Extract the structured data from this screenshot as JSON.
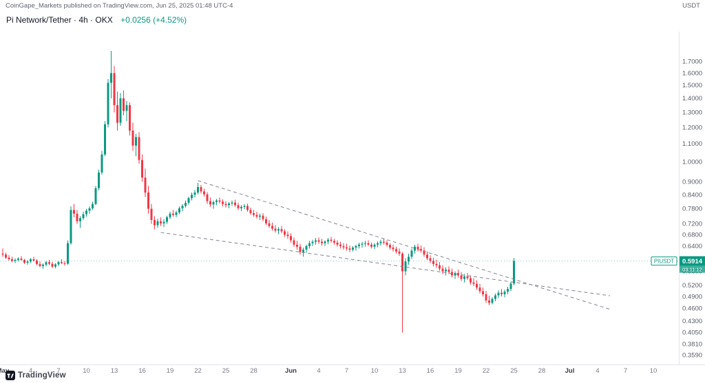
{
  "attribution": {
    "text": "CoinGape_Markets published on TradingView.com, Jun 25, 2025 01:48 UTC-4",
    "right_label": "USDT"
  },
  "header": {
    "symbol_title": "Pi Network/Tether · 4h · OKX",
    "change_text": "+0.0256 (+4.52%)"
  },
  "footer": {
    "logo_text": "TradingView"
  },
  "price_axis_label": {
    "symbol_tag": "PIUSDT",
    "last_price_label": "0.5914",
    "countdown": "03:11:12"
  },
  "colors": {
    "up": "#089981",
    "down": "#f23645",
    "trendline": "#80838e",
    "axis_border": "#e0e3eb",
    "text_primary": "#131722",
    "text_secondary": "#787b86"
  },
  "chart_data": {
    "type": "candlestick",
    "title": "Pi Network/Tether · 4h · OKX",
    "symbol": "PIUSDT",
    "exchange": "OKX",
    "interval": "4h",
    "scale": "log",
    "ylim": [
      0.342,
      1.95
    ],
    "last_price": 0.5914,
    "change_abs": 0.0256,
    "change_pct": 4.52,
    "y_ticks": [
      {
        "v": 1.7,
        "label": "1.7000"
      },
      {
        "v": 1.6,
        "label": "1.6000"
      },
      {
        "v": 1.5,
        "label": "1.5000"
      },
      {
        "v": 1.4,
        "label": "1.4000"
      },
      {
        "v": 1.3,
        "label": "1.3000"
      },
      {
        "v": 1.2,
        "label": "1.2000"
      },
      {
        "v": 1.1,
        "label": "1.1000"
      },
      {
        "v": 1.0,
        "label": "1.0000"
      },
      {
        "v": 0.9,
        "label": "0.9000"
      },
      {
        "v": 0.84,
        "label": "0.8400"
      },
      {
        "v": 0.78,
        "label": "0.7800"
      },
      {
        "v": 0.72,
        "label": "0.7200"
      },
      {
        "v": 0.68,
        "label": "0.6800"
      },
      {
        "v": 0.64,
        "label": "0.6400"
      },
      {
        "v": 0.56,
        "label": "0.5600"
      },
      {
        "v": 0.52,
        "label": "0.5200"
      },
      {
        "v": 0.49,
        "label": "0.4900"
      },
      {
        "v": 0.46,
        "label": "0.4600"
      },
      {
        "v": 0.43,
        "label": "0.4300"
      },
      {
        "v": 0.405,
        "label": "0.4050"
      },
      {
        "v": 0.381,
        "label": "0.3810"
      },
      {
        "v": 0.359,
        "label": "0.3590"
      }
    ],
    "x_ticks": [
      {
        "i": 0,
        "label": "May",
        "m": true
      },
      {
        "i": 9,
        "label": "4"
      },
      {
        "i": 18,
        "label": "7"
      },
      {
        "i": 27,
        "label": "10"
      },
      {
        "i": 36,
        "label": "13"
      },
      {
        "i": 45,
        "label": "16"
      },
      {
        "i": 54,
        "label": "19"
      },
      {
        "i": 63,
        "label": "22"
      },
      {
        "i": 72,
        "label": "25"
      },
      {
        "i": 81,
        "label": "28"
      },
      {
        "i": 93,
        "label": "Jun",
        "m": true
      },
      {
        "i": 102,
        "label": "4"
      },
      {
        "i": 111,
        "label": "7"
      },
      {
        "i": 120,
        "label": "10"
      },
      {
        "i": 129,
        "label": "13"
      },
      {
        "i": 138,
        "label": "16"
      },
      {
        "i": 147,
        "label": "19"
      },
      {
        "i": 156,
        "label": "22"
      },
      {
        "i": 165,
        "label": "25"
      },
      {
        "i": 174,
        "label": "28"
      },
      {
        "i": 183,
        "label": "Jul",
        "m": true
      },
      {
        "i": 192,
        "label": "4"
      },
      {
        "i": 201,
        "label": "7"
      },
      {
        "i": 210,
        "label": "10"
      }
    ],
    "trendlines": [
      {
        "name": "upper",
        "i1": 63,
        "p1": 0.905,
        "i2": 196,
        "p2": 0.458
      },
      {
        "name": "lower",
        "i1": 51,
        "p1": 0.688,
        "i2": 196,
        "p2": 0.492
      }
    ],
    "candles": [
      [
        0.615,
        0.632,
        0.605,
        0.612
      ],
      [
        0.612,
        0.618,
        0.598,
        0.602
      ],
      [
        0.602,
        0.61,
        0.593,
        0.597
      ],
      [
        0.597,
        0.605,
        0.588,
        0.592
      ],
      [
        0.592,
        0.6,
        0.585,
        0.595
      ],
      [
        0.595,
        0.603,
        0.59,
        0.599
      ],
      [
        0.599,
        0.607,
        0.592,
        0.595
      ],
      [
        0.595,
        0.598,
        0.582,
        0.586
      ],
      [
        0.586,
        0.594,
        0.58,
        0.59
      ],
      [
        0.59,
        0.601,
        0.585,
        0.597
      ],
      [
        0.597,
        0.605,
        0.59,
        0.593
      ],
      [
        0.593,
        0.597,
        0.578,
        0.582
      ],
      [
        0.582,
        0.59,
        0.572,
        0.576
      ],
      [
        0.576,
        0.584,
        0.568,
        0.58
      ],
      [
        0.58,
        0.592,
        0.575,
        0.588
      ],
      [
        0.588,
        0.595,
        0.578,
        0.583
      ],
      [
        0.583,
        0.589,
        0.57,
        0.574
      ],
      [
        0.574,
        0.585,
        0.569,
        0.581
      ],
      [
        0.581,
        0.592,
        0.576,
        0.588
      ],
      [
        0.588,
        0.597,
        0.582,
        0.585
      ],
      [
        0.585,
        0.591,
        0.577,
        0.583
      ],
      [
        0.583,
        0.66,
        0.58,
        0.65
      ],
      [
        0.65,
        0.79,
        0.645,
        0.775
      ],
      [
        0.775,
        0.8,
        0.745,
        0.76
      ],
      [
        0.76,
        0.775,
        0.72,
        0.73
      ],
      [
        0.73,
        0.75,
        0.705,
        0.742
      ],
      [
        0.742,
        0.768,
        0.735,
        0.758
      ],
      [
        0.758,
        0.78,
        0.748,
        0.772
      ],
      [
        0.772,
        0.79,
        0.76,
        0.782
      ],
      [
        0.782,
        0.81,
        0.775,
        0.8
      ],
      [
        0.8,
        0.88,
        0.795,
        0.87
      ],
      [
        0.87,
        0.96,
        0.86,
        0.945
      ],
      [
        0.945,
        1.06,
        0.935,
        1.04
      ],
      [
        1.04,
        1.24,
        1.03,
        1.22
      ],
      [
        1.22,
        1.55,
        1.2,
        1.52
      ],
      [
        1.52,
        1.8,
        1.4,
        1.6
      ],
      [
        1.6,
        1.66,
        1.3,
        1.35
      ],
      [
        1.35,
        1.45,
        1.18,
        1.23
      ],
      [
        1.23,
        1.44,
        1.21,
        1.4
      ],
      [
        1.4,
        1.46,
        1.28,
        1.31
      ],
      [
        1.31,
        1.38,
        1.24,
        1.35
      ],
      [
        1.35,
        1.37,
        1.15,
        1.18
      ],
      [
        1.18,
        1.23,
        1.06,
        1.09
      ],
      [
        1.09,
        1.16,
        1.03,
        1.14
      ],
      [
        1.14,
        1.17,
        0.99,
        1.01
      ],
      [
        1.01,
        1.04,
        0.9,
        0.92
      ],
      [
        0.92,
        0.965,
        0.83,
        0.85
      ],
      [
        0.85,
        0.88,
        0.76,
        0.78
      ],
      [
        0.78,
        0.8,
        0.72,
        0.735
      ],
      [
        0.735,
        0.75,
        0.7,
        0.715
      ],
      [
        0.715,
        0.74,
        0.705,
        0.73
      ],
      [
        0.73,
        0.745,
        0.712,
        0.722
      ],
      [
        0.722,
        0.738,
        0.708,
        0.728
      ],
      [
        0.728,
        0.752,
        0.72,
        0.746
      ],
      [
        0.746,
        0.768,
        0.738,
        0.76
      ],
      [
        0.76,
        0.775,
        0.748,
        0.755
      ],
      [
        0.755,
        0.772,
        0.746,
        0.765
      ],
      [
        0.765,
        0.79,
        0.758,
        0.782
      ],
      [
        0.782,
        0.8,
        0.77,
        0.792
      ],
      [
        0.792,
        0.815,
        0.785,
        0.805
      ],
      [
        0.805,
        0.832,
        0.798,
        0.825
      ],
      [
        0.825,
        0.85,
        0.815,
        0.84
      ],
      [
        0.84,
        0.862,
        0.828,
        0.85
      ],
      [
        0.85,
        0.895,
        0.842,
        0.875
      ],
      [
        0.875,
        0.885,
        0.845,
        0.855
      ],
      [
        0.855,
        0.868,
        0.832,
        0.842
      ],
      [
        0.842,
        0.852,
        0.8,
        0.812
      ],
      [
        0.812,
        0.828,
        0.788,
        0.798
      ],
      [
        0.798,
        0.815,
        0.78,
        0.808
      ],
      [
        0.808,
        0.822,
        0.795,
        0.815
      ],
      [
        0.815,
        0.828,
        0.802,
        0.81
      ],
      [
        0.81,
        0.82,
        0.79,
        0.8
      ],
      [
        0.8,
        0.812,
        0.785,
        0.795
      ],
      [
        0.795,
        0.808,
        0.782,
        0.802
      ],
      [
        0.802,
        0.815,
        0.792,
        0.806
      ],
      [
        0.806,
        0.818,
        0.788,
        0.795
      ],
      [
        0.795,
        0.805,
        0.775,
        0.782
      ],
      [
        0.782,
        0.795,
        0.77,
        0.788
      ],
      [
        0.788,
        0.8,
        0.778,
        0.792
      ],
      [
        0.792,
        0.802,
        0.768,
        0.775
      ],
      [
        0.775,
        0.785,
        0.755,
        0.762
      ],
      [
        0.762,
        0.775,
        0.748,
        0.755
      ],
      [
        0.755,
        0.768,
        0.74,
        0.748
      ],
      [
        0.748,
        0.76,
        0.735,
        0.752
      ],
      [
        0.752,
        0.762,
        0.73,
        0.738
      ],
      [
        0.738,
        0.748,
        0.715,
        0.722
      ],
      [
        0.722,
        0.735,
        0.705,
        0.712
      ],
      [
        0.712,
        0.725,
        0.695,
        0.702
      ],
      [
        0.702,
        0.715,
        0.688,
        0.695
      ],
      [
        0.695,
        0.708,
        0.682,
        0.7
      ],
      [
        0.7,
        0.712,
        0.685,
        0.692
      ],
      [
        0.692,
        0.7,
        0.672,
        0.68
      ],
      [
        0.68,
        0.692,
        0.665,
        0.675
      ],
      [
        0.675,
        0.685,
        0.652,
        0.66
      ],
      [
        0.66,
        0.67,
        0.638,
        0.645
      ],
      [
        0.645,
        0.658,
        0.628,
        0.638
      ],
      [
        0.638,
        0.648,
        0.612,
        0.62
      ],
      [
        0.62,
        0.635,
        0.605,
        0.628
      ],
      [
        0.628,
        0.645,
        0.618,
        0.64
      ],
      [
        0.64,
        0.658,
        0.632,
        0.65
      ],
      [
        0.65,
        0.662,
        0.64,
        0.655
      ],
      [
        0.655,
        0.668,
        0.645,
        0.66
      ],
      [
        0.66,
        0.67,
        0.648,
        0.655
      ],
      [
        0.655,
        0.665,
        0.642,
        0.65
      ],
      [
        0.65,
        0.66,
        0.64,
        0.656
      ],
      [
        0.656,
        0.668,
        0.646,
        0.662
      ],
      [
        0.662,
        0.672,
        0.652,
        0.658
      ],
      [
        0.658,
        0.665,
        0.645,
        0.652
      ],
      [
        0.652,
        0.66,
        0.638,
        0.645
      ],
      [
        0.645,
        0.655,
        0.632,
        0.64
      ],
      [
        0.64,
        0.65,
        0.628,
        0.636
      ],
      [
        0.636,
        0.648,
        0.625,
        0.632
      ],
      [
        0.632,
        0.642,
        0.62,
        0.628
      ],
      [
        0.628,
        0.64,
        0.622,
        0.635
      ],
      [
        0.635,
        0.645,
        0.625,
        0.64
      ],
      [
        0.64,
        0.652,
        0.632,
        0.645
      ],
      [
        0.645,
        0.655,
        0.635,
        0.648
      ],
      [
        0.648,
        0.658,
        0.638,
        0.65
      ],
      [
        0.65,
        0.66,
        0.64,
        0.645
      ],
      [
        0.645,
        0.652,
        0.632,
        0.638
      ],
      [
        0.638,
        0.65,
        0.63,
        0.645
      ],
      [
        0.645,
        0.656,
        0.636,
        0.65
      ],
      [
        0.65,
        0.662,
        0.642,
        0.655
      ],
      [
        0.655,
        0.665,
        0.645,
        0.652
      ],
      [
        0.652,
        0.66,
        0.638,
        0.644
      ],
      [
        0.644,
        0.65,
        0.628,
        0.635
      ],
      [
        0.635,
        0.645,
        0.622,
        0.63
      ],
      [
        0.63,
        0.638,
        0.615,
        0.622
      ],
      [
        0.622,
        0.632,
        0.608,
        0.615
      ],
      [
        0.615,
        0.62,
        0.405,
        0.56
      ],
      [
        0.56,
        0.6,
        0.548,
        0.59
      ],
      [
        0.59,
        0.615,
        0.58,
        0.605
      ],
      [
        0.605,
        0.632,
        0.598,
        0.625
      ],
      [
        0.625,
        0.645,
        0.615,
        0.638
      ],
      [
        0.638,
        0.648,
        0.622,
        0.63
      ],
      [
        0.63,
        0.642,
        0.618,
        0.625
      ],
      [
        0.625,
        0.636,
        0.605,
        0.612
      ],
      [
        0.612,
        0.622,
        0.595,
        0.6
      ],
      [
        0.6,
        0.61,
        0.585,
        0.592
      ],
      [
        0.592,
        0.602,
        0.575,
        0.582
      ],
      [
        0.582,
        0.595,
        0.57,
        0.578
      ],
      [
        0.578,
        0.588,
        0.562,
        0.568
      ],
      [
        0.568,
        0.578,
        0.552,
        0.56
      ],
      [
        0.56,
        0.572,
        0.548,
        0.565
      ],
      [
        0.565,
        0.575,
        0.552,
        0.558
      ],
      [
        0.558,
        0.568,
        0.542,
        0.548
      ],
      [
        0.548,
        0.56,
        0.538,
        0.555
      ],
      [
        0.555,
        0.565,
        0.542,
        0.548
      ],
      [
        0.548,
        0.558,
        0.532,
        0.538
      ],
      [
        0.538,
        0.552,
        0.528,
        0.545
      ],
      [
        0.545,
        0.555,
        0.535,
        0.54
      ],
      [
        0.54,
        0.548,
        0.522,
        0.528
      ],
      [
        0.528,
        0.54,
        0.518,
        0.524
      ],
      [
        0.524,
        0.534,
        0.508,
        0.514
      ],
      [
        0.514,
        0.524,
        0.498,
        0.504
      ],
      [
        0.504,
        0.514,
        0.49,
        0.496
      ],
      [
        0.496,
        0.505,
        0.474,
        0.48
      ],
      [
        0.48,
        0.492,
        0.468,
        0.474
      ],
      [
        0.474,
        0.488,
        0.47,
        0.484
      ],
      [
        0.484,
        0.498,
        0.478,
        0.493
      ],
      [
        0.493,
        0.506,
        0.486,
        0.5
      ],
      [
        0.5,
        0.51,
        0.49,
        0.496
      ],
      [
        0.496,
        0.508,
        0.488,
        0.503
      ],
      [
        0.503,
        0.516,
        0.496,
        0.51
      ],
      [
        0.51,
        0.53,
        0.504,
        0.525
      ],
      [
        0.525,
        0.601,
        0.52,
        0.5914
      ]
    ]
  }
}
